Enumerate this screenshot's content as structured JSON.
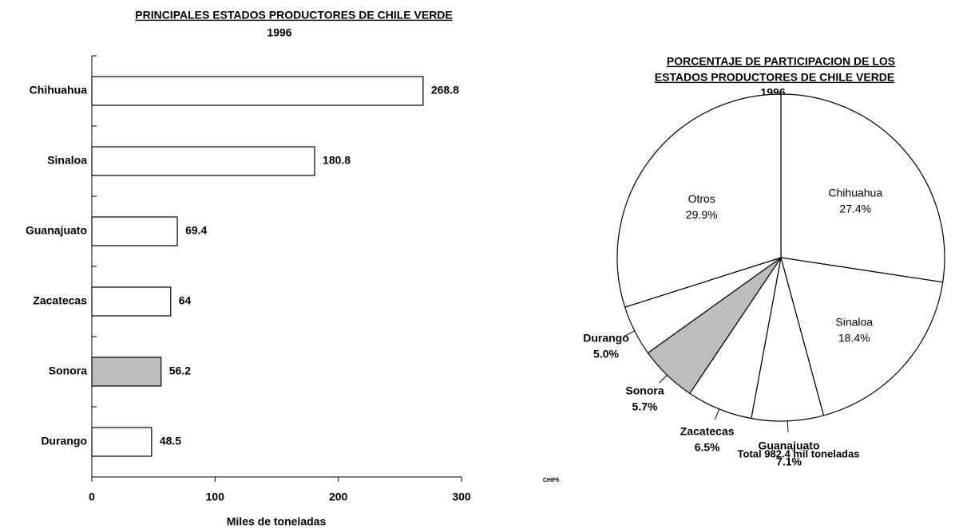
{
  "chart_data": [
    {
      "type": "hbar",
      "title": "PRINCIPALES ESTADOS PRODUCTORES DE CHILE VERDE",
      "subtitle": "1996",
      "x_label": "Miles de toneladas",
      "categories": [
        "Chihuahua",
        "Sinaloa",
        "Guanajuato",
        "Zacatecas",
        "Sonora",
        "Durango"
      ],
      "values": [
        268.8,
        180.8,
        69.4,
        64,
        56.2,
        48.5
      ],
      "colors": [
        "#ffffff",
        "#ffffff",
        "#ffffff",
        "#ffffff",
        "#bdbdbd",
        "#ffffff"
      ],
      "xlim": [
        0,
        300
      ],
      "xticks": [
        0,
        100,
        200,
        300
      ]
    },
    {
      "type": "pie",
      "title_lines": [
        "PORCENTAJE DE PARTICIPACION DE LOS",
        "ESTADOS PRODUCTORES DE CHILE VERDE"
      ],
      "subtitle": "1996",
      "categories": [
        "Chihuahua",
        "Sinaloa",
        "Guanajuato",
        "Zacatecas",
        "Sonora",
        "Durango",
        "Otros"
      ],
      "values": [
        27.4,
        18.4,
        7.1,
        6.5,
        5.7,
        5.0,
        29.9
      ],
      "value_labels": [
        "27.4%",
        "18.4%",
        "7.1%",
        "6.5%",
        "5.7%",
        "5.0%",
        "29.9%"
      ],
      "colors": [
        "#ffffff",
        "#ffffff",
        "#ffffff",
        "#ffffff",
        "#bdbdbd",
        "#ffffff",
        "#ffffff"
      ],
      "annotation": "Total 982.4 mil toneladas"
    }
  ],
  "footnote": "CHIF6"
}
